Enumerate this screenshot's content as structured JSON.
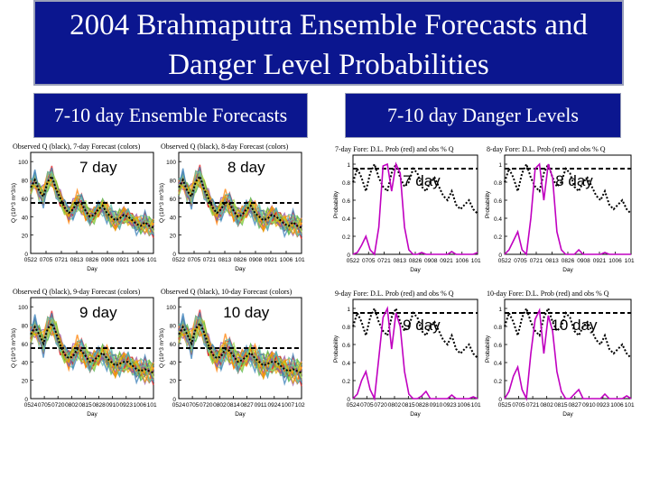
{
  "title": {
    "line1": "2004 Brahmaputra Ensemble Forecasts and",
    "line2": "Danger Level Probabilities"
  },
  "left_header": "7-10 day Ensemble Forecasts",
  "right_header": "7-10 day Danger Levels",
  "colors": {
    "header_bg": "#0b168f",
    "observed": "#000000",
    "danger_prob": "#c000c0",
    "ensemble": [
      "#e41a1c",
      "#ff7f00",
      "#4daf4a",
      "#377eb8",
      "#984ea3",
      "#a6d854",
      "#66c2a5",
      "#e6ab02"
    ]
  },
  "chart_data": [
    {
      "type": "line",
      "panel_title": "Observed Q (black), 7-day Forecast (colors)",
      "big_label": "7 day",
      "ylabel": "Q (10^3 m^3/s)",
      "xlabel": "Day",
      "x_ticks": [
        "0522",
        "0705",
        "0721",
        "0813",
        "0826",
        "0908",
        "0921",
        "1006",
        "1019"
      ],
      "y_ticks": [
        0,
        20,
        40,
        60,
        80,
        100
      ],
      "ylim": [
        0,
        110
      ],
      "danger_level": 55,
      "observed": [
        72,
        80,
        68,
        62,
        78,
        84,
        70,
        60,
        50,
        44,
        48,
        56,
        54,
        46,
        40,
        42,
        48,
        52,
        44,
        40,
        36,
        38,
        42,
        40,
        36,
        32,
        30,
        34,
        30,
        28
      ],
      "ensemble_spread": 10
    },
    {
      "type": "line",
      "panel_title": "Observed Q (black), 8-day Forecast (colors)",
      "big_label": "8 day",
      "ylabel": "Q (10^3 m^3/s)",
      "xlabel": "Day",
      "x_ticks": [
        "0522",
        "0705",
        "0721",
        "0813",
        "0826",
        "0908",
        "0921",
        "1006",
        "1019"
      ],
      "y_ticks": [
        0,
        20,
        40,
        60,
        80,
        100
      ],
      "ylim": [
        0,
        110
      ],
      "danger_level": 55,
      "observed": [
        72,
        80,
        68,
        62,
        78,
        84,
        70,
        60,
        50,
        44,
        48,
        56,
        54,
        46,
        40,
        42,
        48,
        52,
        44,
        40,
        36,
        38,
        42,
        40,
        36,
        32,
        30,
        34,
        30,
        28
      ],
      "ensemble_spread": 11
    },
    {
      "type": "line",
      "panel_title": "Observed Q (black), 9-day Forecast (colors)",
      "big_label": "9 day",
      "ylabel": "Q (10^3 m^3/s)",
      "xlabel": "Day",
      "x_ticks": [
        "0524",
        "0705",
        "0720",
        "0802",
        "0815",
        "0828",
        "0910",
        "0923",
        "1006",
        "1019"
      ],
      "y_ticks": [
        0,
        20,
        40,
        60,
        80,
        100
      ],
      "ylim": [
        0,
        110
      ],
      "danger_level": 55,
      "observed": [
        70,
        78,
        70,
        60,
        76,
        82,
        72,
        58,
        48,
        44,
        46,
        54,
        52,
        46,
        40,
        42,
        46,
        50,
        44,
        40,
        36,
        38,
        40,
        40,
        36,
        32,
        30,
        32,
        30,
        28
      ],
      "ensemble_spread": 12
    },
    {
      "type": "line",
      "panel_title": "Observed Q (black), 10-day Forecast (colors)",
      "big_label": "10 day",
      "ylabel": "Q (10^3 m^3/s)",
      "xlabel": "Day",
      "x_ticks": [
        "0524",
        "0705",
        "0720",
        "0802",
        "0814",
        "0827",
        "0911",
        "0924",
        "1007",
        "1020"
      ],
      "y_ticks": [
        0,
        20,
        40,
        60,
        80,
        100
      ],
      "ylim": [
        0,
        110
      ],
      "danger_level": 55,
      "observed": [
        70,
        78,
        70,
        60,
        76,
        82,
        72,
        58,
        48,
        44,
        46,
        54,
        52,
        46,
        40,
        42,
        46,
        50,
        44,
        40,
        36,
        38,
        40,
        40,
        36,
        32,
        30,
        32,
        30,
        28
      ],
      "ensemble_spread": 13
    },
    {
      "type": "line",
      "panel_title": "7-day Fore: D.L. Prob (red) and obs % Q",
      "big_label": "7 day",
      "ylabel": "Probability",
      "xlabel": "Day",
      "x_ticks": [
        "0522",
        "0705",
        "0721",
        "0813",
        "0826",
        "0908",
        "0921",
        "1006",
        "1019"
      ],
      "y_ticks": [
        0,
        0.2,
        0.4,
        0.6,
        0.8,
        1.0
      ],
      "ylim": [
        0,
        1.1
      ],
      "danger_level": 0.95,
      "probability": [
        0,
        0.02,
        0.1,
        0.2,
        0.05,
        0,
        0.3,
        0.98,
        1.0,
        0.7,
        1.0,
        0.9,
        0.3,
        0.05,
        0,
        0,
        0.02,
        0,
        0,
        0,
        0,
        0,
        0,
        0.03,
        0,
        0,
        0,
        0,
        0,
        0.02
      ],
      "observed_pct": [
        0.8,
        0.95,
        0.85,
        0.7,
        0.9,
        1.0,
        0.85,
        0.75,
        0.7,
        0.9,
        1.0,
        0.85,
        0.75,
        0.8,
        0.95,
        0.9,
        0.75,
        0.7,
        0.8,
        0.85,
        0.75,
        0.65,
        0.6,
        0.7,
        0.55,
        0.5,
        0.55,
        0.6,
        0.5,
        0.45
      ]
    },
    {
      "type": "line",
      "panel_title": "8-day Fore: D.L. Prob (red) and obs % Q",
      "big_label": "8 day",
      "ylabel": "Probability",
      "xlabel": "Day",
      "x_ticks": [
        "0522",
        "0705",
        "0721",
        "0813",
        "0826",
        "0908",
        "0921",
        "1006",
        "1019"
      ],
      "y_ticks": [
        0,
        0.2,
        0.4,
        0.6,
        0.8,
        1.0
      ],
      "ylim": [
        0,
        1.1
      ],
      "danger_level": 0.95,
      "probability": [
        0,
        0.05,
        0.15,
        0.25,
        0.05,
        0,
        0.4,
        0.95,
        1.0,
        0.6,
        1.0,
        0.85,
        0.25,
        0.05,
        0,
        0,
        0,
        0.05,
        0,
        0,
        0,
        0,
        0,
        0.02,
        0,
        0,
        0,
        0,
        0,
        0
      ],
      "observed_pct": [
        0.8,
        0.95,
        0.85,
        0.7,
        0.9,
        1.0,
        0.85,
        0.75,
        0.7,
        0.9,
        1.0,
        0.85,
        0.75,
        0.8,
        0.95,
        0.9,
        0.75,
        0.7,
        0.8,
        0.85,
        0.75,
        0.65,
        0.6,
        0.7,
        0.55,
        0.5,
        0.55,
        0.6,
        0.5,
        0.45
      ]
    },
    {
      "type": "line",
      "panel_title": "9-day Fore: D.L. Prob (red) and obs % Q",
      "big_label": "9 day",
      "ylabel": "Probability",
      "xlabel": "Day",
      "x_ticks": [
        "0524",
        "0705",
        "0720",
        "0802",
        "0815",
        "0828",
        "0910",
        "0923",
        "1006",
        "1019"
      ],
      "y_ticks": [
        0,
        0.2,
        0.4,
        0.6,
        0.8,
        1.0
      ],
      "ylim": [
        0,
        1.1
      ],
      "danger_level": 0.95,
      "probability": [
        0,
        0.05,
        0.2,
        0.3,
        0.1,
        0,
        0.45,
        0.9,
        1.0,
        0.55,
        0.95,
        0.8,
        0.3,
        0.05,
        0,
        0,
        0.03,
        0.08,
        0,
        0,
        0,
        0,
        0,
        0.04,
        0,
        0,
        0,
        0,
        0.02,
        0
      ],
      "observed_pct": [
        0.8,
        0.95,
        0.85,
        0.7,
        0.9,
        1.0,
        0.85,
        0.75,
        0.7,
        0.9,
        1.0,
        0.85,
        0.75,
        0.8,
        0.95,
        0.9,
        0.75,
        0.7,
        0.8,
        0.85,
        0.75,
        0.65,
        0.6,
        0.7,
        0.55,
        0.5,
        0.55,
        0.6,
        0.5,
        0.45
      ]
    },
    {
      "type": "line",
      "panel_title": "10-day Fore: D.L. Prob (red) and obs % Q",
      "big_label": "10 day",
      "ylabel": "Probability",
      "xlabel": "Day",
      "x_ticks": [
        "0525",
        "0705",
        "0721",
        "0802",
        "0815",
        "0827",
        "0910",
        "0923",
        "1006",
        "1019"
      ],
      "y_ticks": [
        0,
        0.2,
        0.4,
        0.6,
        0.8,
        1.0
      ],
      "ylim": [
        0,
        1.1
      ],
      "danger_level": 0.95,
      "probability": [
        0,
        0.08,
        0.25,
        0.35,
        0.1,
        0,
        0.5,
        0.88,
        0.98,
        0.5,
        0.92,
        0.75,
        0.3,
        0.08,
        0,
        0,
        0.05,
        0.1,
        0,
        0,
        0,
        0,
        0,
        0.05,
        0,
        0,
        0,
        0,
        0.03,
        0
      ],
      "observed_pct": [
        0.8,
        0.95,
        0.85,
        0.7,
        0.9,
        1.0,
        0.85,
        0.75,
        0.7,
        0.9,
        1.0,
        0.85,
        0.75,
        0.8,
        0.95,
        0.9,
        0.75,
        0.7,
        0.8,
        0.85,
        0.75,
        0.65,
        0.6,
        0.7,
        0.55,
        0.5,
        0.55,
        0.6,
        0.5,
        0.45
      ]
    }
  ]
}
